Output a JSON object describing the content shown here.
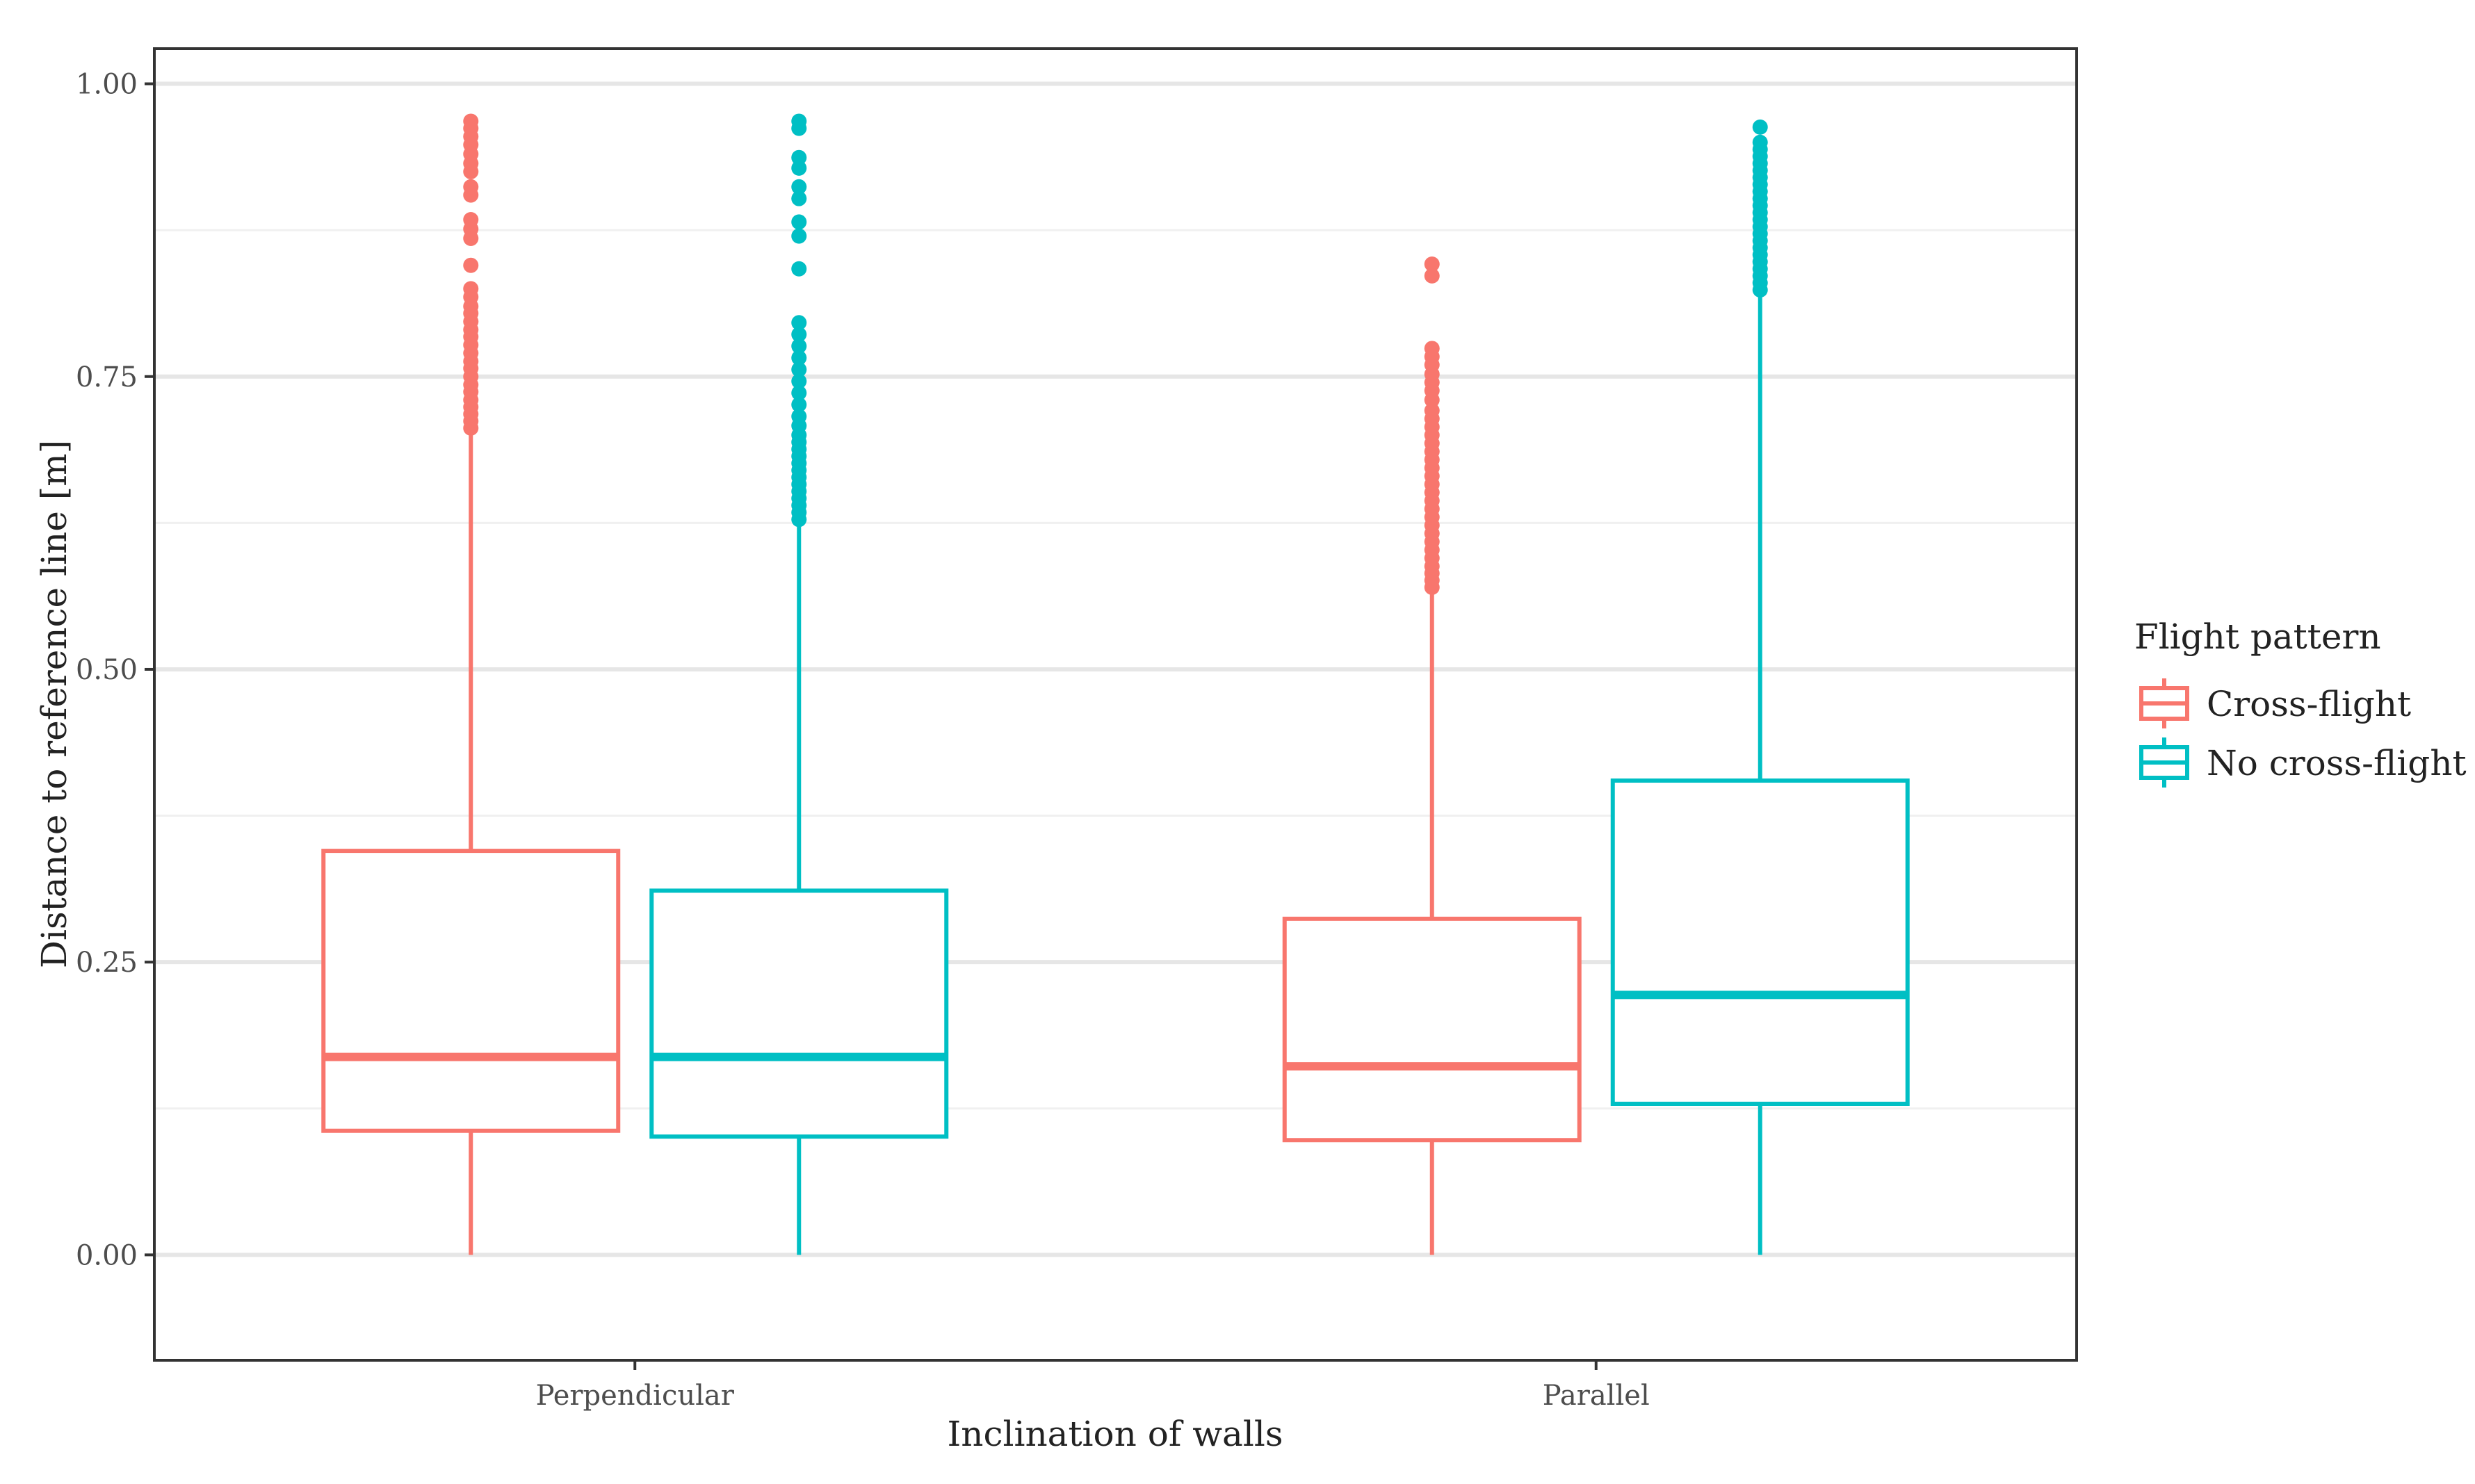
{
  "chart_data": {
    "type": "boxplot",
    "title": "",
    "xlabel": "Inclination of walls",
    "ylabel": "Distance to reference line [m]",
    "ylim": [
      -0.09,
      1.03
    ],
    "y_ticks": [
      0.0,
      0.25,
      0.5,
      0.75,
      1.0
    ],
    "y_tick_labels": [
      "0.00",
      "0.25",
      "0.50",
      "0.75",
      "1.00"
    ],
    "y_minor_ticks": [
      0.125,
      0.375,
      0.625,
      0.875
    ],
    "categories": [
      "Perpendicular",
      "Parallel"
    ],
    "legend": {
      "title": "Flight pattern",
      "position": "right",
      "entries": [
        "Cross-flight",
        "No cross-flight"
      ]
    },
    "series": [
      {
        "name": "Cross-flight",
        "color": "#F8766D",
        "boxes": [
          {
            "category": "Perpendicular",
            "whisker_low": 0.0,
            "q1": 0.106,
            "median": 0.169,
            "q3": 0.345,
            "whisker_high": 0.703,
            "outliers": [
              0.706,
              0.712,
              0.718,
              0.724,
              0.73,
              0.737,
              0.743,
              0.75,
              0.757,
              0.763,
              0.77,
              0.777,
              0.784,
              0.79,
              0.797,
              0.804,
              0.81,
              0.818,
              0.825,
              0.845,
              0.868,
              0.876,
              0.884,
              0.905,
              0.912,
              0.925,
              0.932,
              0.94,
              0.948,
              0.955,
              0.962,
              0.968
            ]
          },
          {
            "category": "Parallel",
            "whisker_low": 0.0,
            "q1": 0.098,
            "median": 0.161,
            "q3": 0.287,
            "whisker_high": 0.567,
            "outliers": [
              0.57,
              0.576,
              0.582,
              0.588,
              0.595,
              0.602,
              0.609,
              0.616,
              0.623,
              0.63,
              0.637,
              0.644,
              0.651,
              0.658,
              0.665,
              0.672,
              0.679,
              0.686,
              0.693,
              0.7,
              0.707,
              0.714,
              0.721,
              0.73,
              0.738,
              0.745,
              0.752,
              0.76,
              0.767,
              0.774,
              0.836,
              0.846
            ]
          }
        ]
      },
      {
        "name": "No cross-flight",
        "color": "#00BFC4",
        "boxes": [
          {
            "category": "Perpendicular",
            "whisker_low": 0.0,
            "q1": 0.101,
            "median": 0.169,
            "q3": 0.311,
            "whisker_high": 0.625,
            "outliers": [
              0.628,
              0.634,
              0.64,
              0.646,
              0.652,
              0.658,
              0.664,
              0.67,
              0.676,
              0.682,
              0.688,
              0.694,
              0.7,
              0.708,
              0.716,
              0.726,
              0.736,
              0.746,
              0.756,
              0.766,
              0.776,
              0.786,
              0.796,
              0.842,
              0.87,
              0.882,
              0.902,
              0.912,
              0.928,
              0.937,
              0.962,
              0.968
            ]
          },
          {
            "category": "Parallel",
            "whisker_low": 0.0,
            "q1": 0.129,
            "median": 0.222,
            "q3": 0.405,
            "whisker_high": 0.82,
            "outliers": [
              0.824,
              0.83,
              0.836,
              0.842,
              0.848,
              0.854,
              0.86,
              0.866,
              0.872,
              0.878,
              0.884,
              0.89,
              0.896,
              0.902,
              0.908,
              0.914,
              0.92,
              0.926,
              0.932,
              0.938,
              0.944,
              0.95,
              0.963
            ]
          }
        ]
      }
    ]
  }
}
